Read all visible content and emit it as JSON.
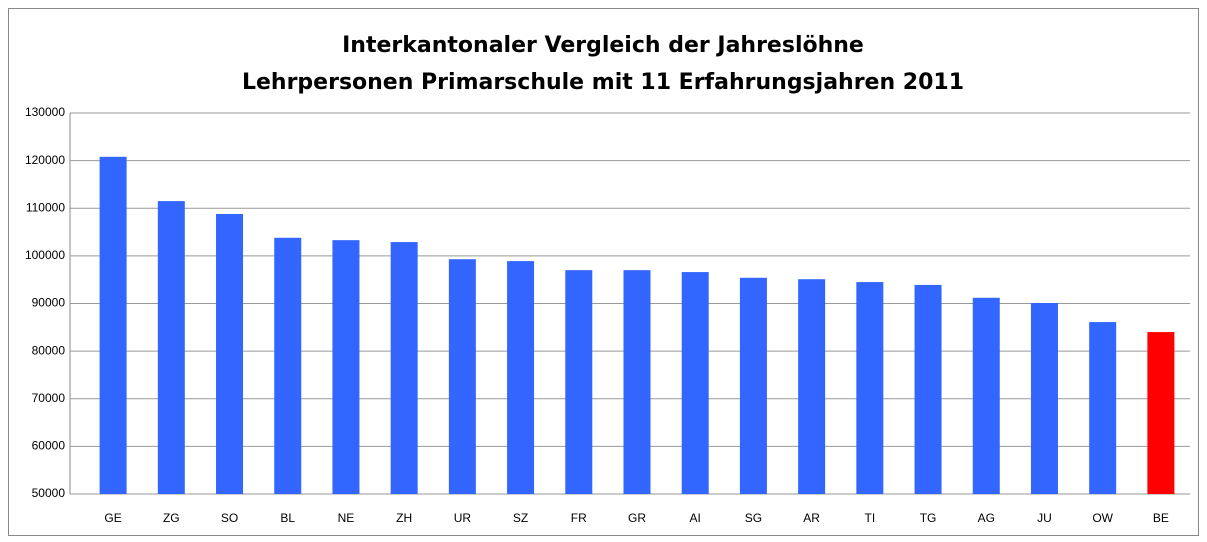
{
  "chart_data": {
    "type": "bar",
    "title": [
      "Interkantonaler Vergleich der Jahreslöhne",
      "Lehrpersonen Primarschule mit 11 Erfahrungsjahren 2011"
    ],
    "categories": [
      "GE",
      "ZG",
      "SO",
      "BL",
      "NE",
      "ZH",
      "UR",
      "SZ",
      "FR",
      "GR",
      "AI",
      "SG",
      "AR",
      "TI",
      "TG",
      "AG",
      "JU",
      "OW",
      "BE"
    ],
    "values": [
      120800,
      111500,
      108800,
      103800,
      103300,
      102900,
      99300,
      98900,
      97000,
      97000,
      96600,
      95400,
      95100,
      94500,
      93900,
      91200,
      90100,
      86100,
      84000
    ],
    "colors": [
      "#3366ff",
      "#3366ff",
      "#3366ff",
      "#3366ff",
      "#3366ff",
      "#3366ff",
      "#3366ff",
      "#3366ff",
      "#3366ff",
      "#3366ff",
      "#3366ff",
      "#3366ff",
      "#3366ff",
      "#3366ff",
      "#3366ff",
      "#3366ff",
      "#3366ff",
      "#3366ff",
      "#ff0000"
    ],
    "ylim": [
      50000,
      130000
    ],
    "yticks": [
      50000,
      60000,
      70000,
      80000,
      90000,
      100000,
      110000,
      120000,
      130000
    ],
    "grid": true
  }
}
